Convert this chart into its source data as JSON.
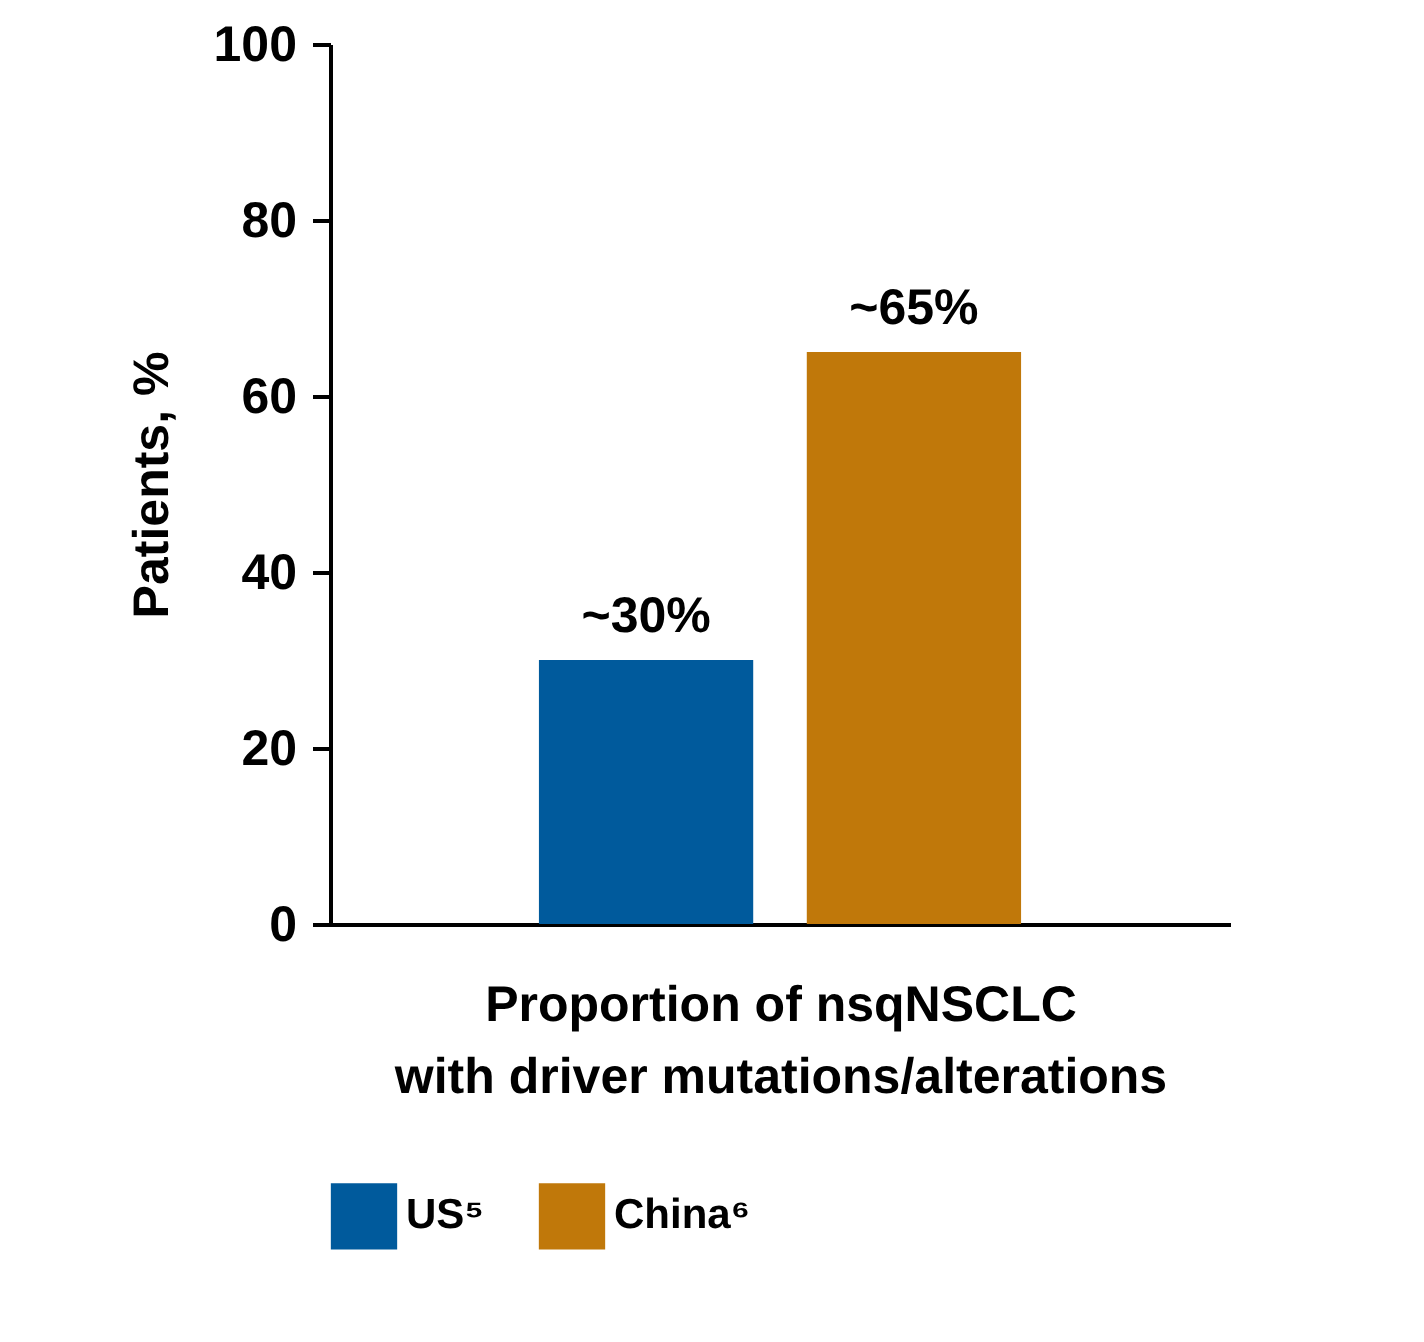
{
  "chart_data": {
    "type": "bar",
    "xlabel": "Proportion of nsqNSCLC\nwith driver mutations/alterations",
    "ylabel": "Patients, %",
    "categories": [
      null
    ],
    "series": [
      {
        "name": "US⁵",
        "color": "#005a9c",
        "values": [
          30
        ],
        "value_labels": [
          "~30%"
        ]
      },
      {
        "name": "China⁶",
        "color": "#c0780a",
        "values": [
          65
        ],
        "value_labels": [
          "~65%"
        ]
      }
    ],
    "ylim": [
      0,
      100
    ],
    "yticks": [
      0,
      20,
      40,
      60,
      80,
      100
    ],
    "grid": false,
    "legend": "bottom"
  }
}
